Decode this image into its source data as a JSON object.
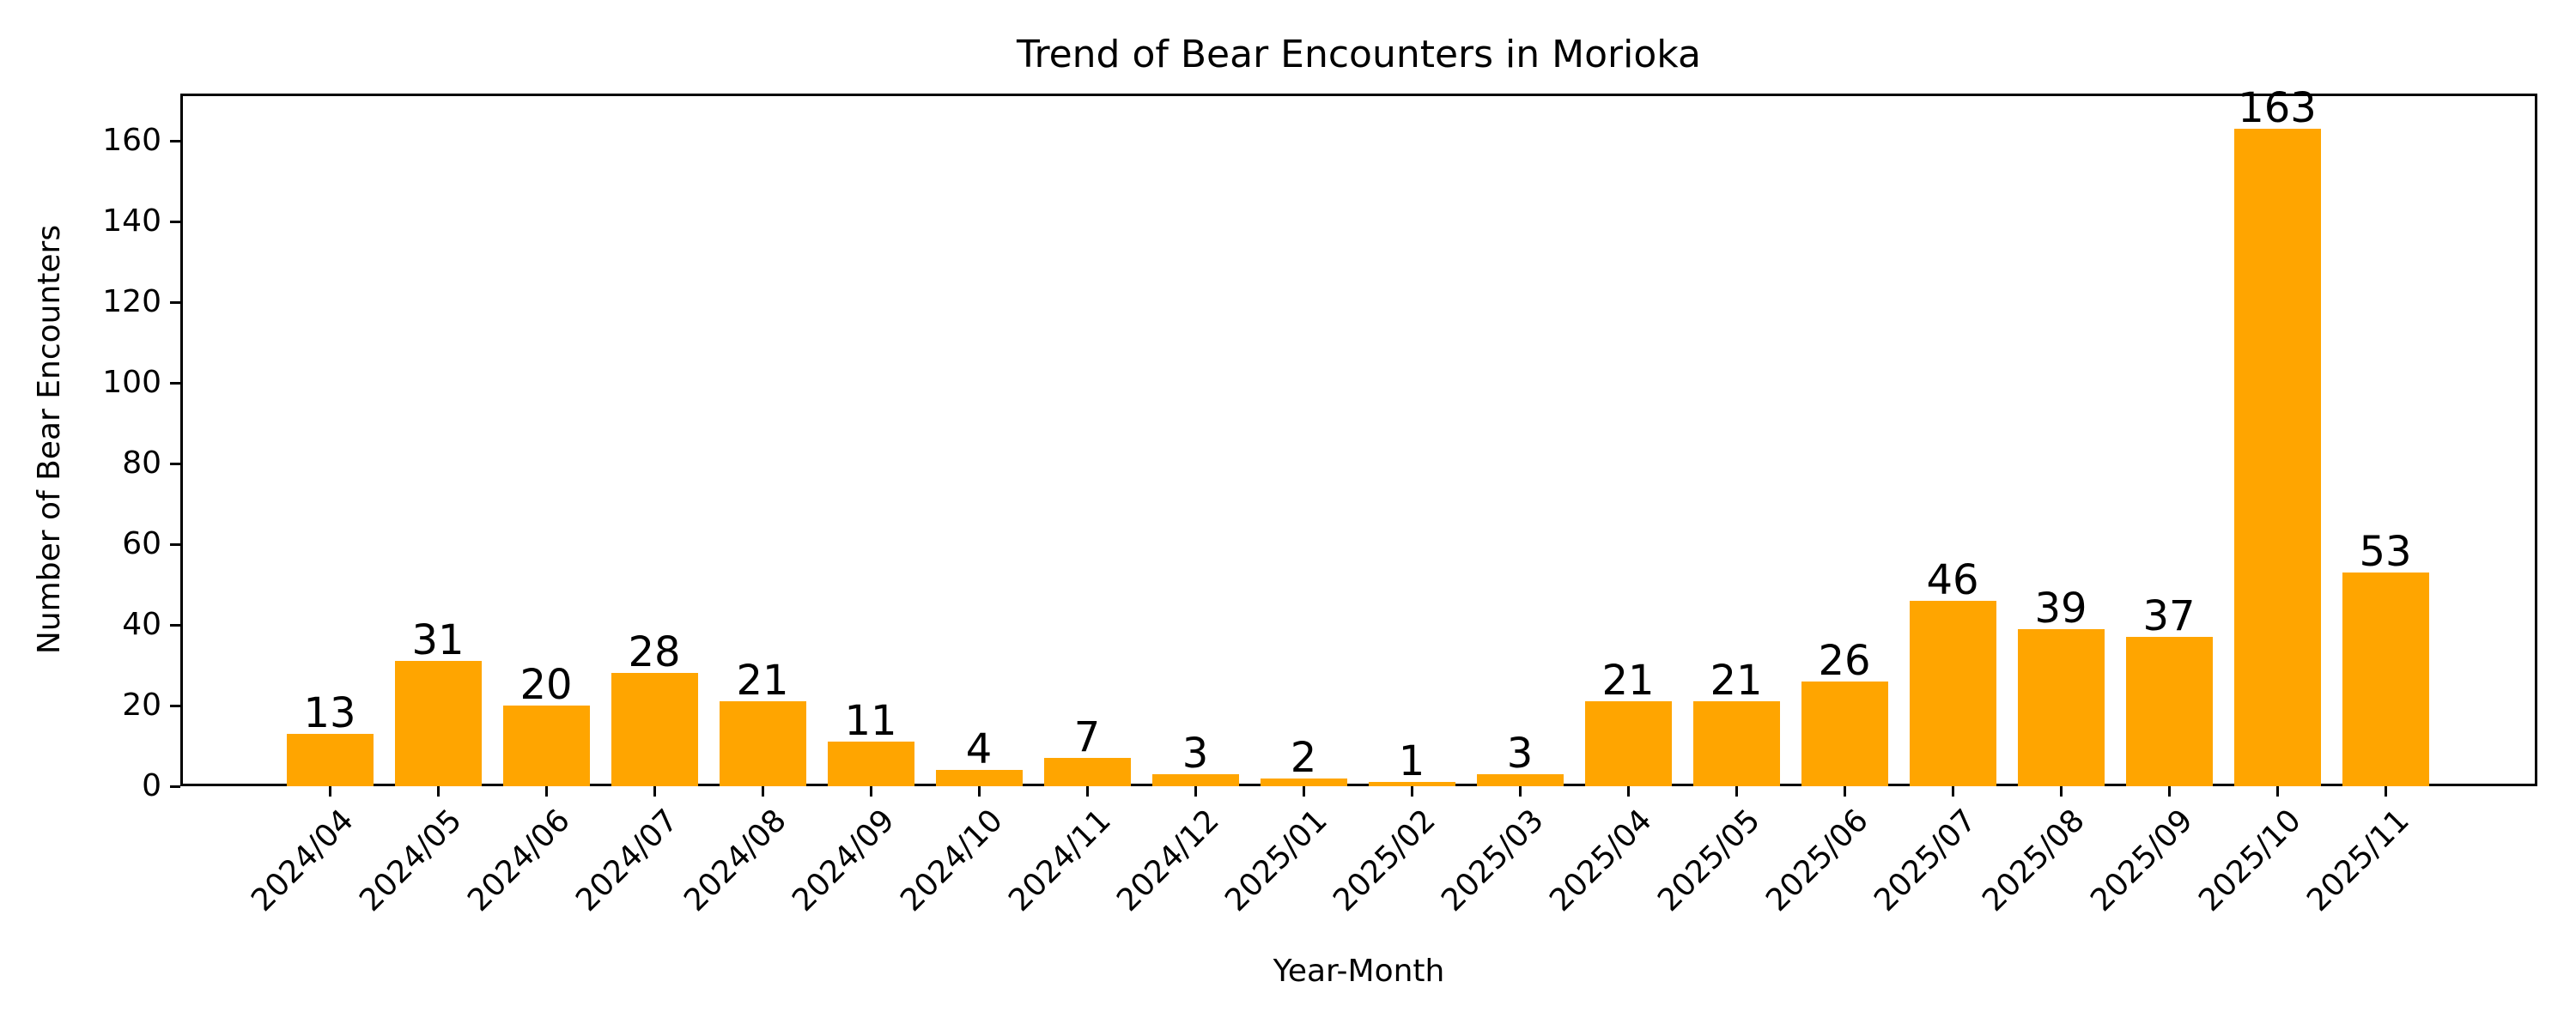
{
  "chart_data": {
    "type": "bar",
    "title": "Trend of Bear Encounters in Morioka",
    "xlabel": "Year-Month",
    "ylabel": "Number of Bear Encounters",
    "categories": [
      "2024/04",
      "2024/05",
      "2024/06",
      "2024/07",
      "2024/08",
      "2024/09",
      "2024/10",
      "2024/11",
      "2024/12",
      "2025/01",
      "2025/02",
      "2025/03",
      "2025/04",
      "2025/05",
      "2025/06",
      "2025/07",
      "2025/08",
      "2025/09",
      "2025/10",
      "2025/11"
    ],
    "values": [
      13,
      31,
      20,
      28,
      21,
      11,
      4,
      7,
      3,
      2,
      1,
      3,
      21,
      21,
      26,
      46,
      39,
      37,
      163,
      53
    ],
    "ylim": [
      0,
      171
    ],
    "yticks": [
      0,
      20,
      40,
      60,
      80,
      100,
      120,
      140,
      160
    ],
    "bar_color": "#FFA500",
    "data_labels": true,
    "grid": false,
    "legend": null
  }
}
